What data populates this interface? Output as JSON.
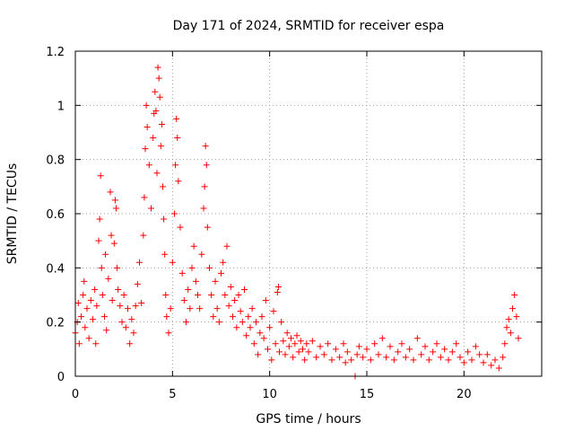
{
  "chart_data": {
    "type": "scatter",
    "title": "Day 171 of 2024, SRMTID for receiver espa",
    "xlabel": "GPS time / hours",
    "ylabel": "SRMTID / TECUs",
    "xlim": [
      0,
      24
    ],
    "ylim": [
      0,
      1.2
    ],
    "x_ticks": [
      0,
      5,
      10,
      15,
      20
    ],
    "x_tick_labels": [
      "0",
      "5",
      "10",
      "15",
      "20"
    ],
    "y_ticks": [
      0,
      0.2,
      0.4,
      0.6,
      0.8,
      1.0,
      1.2
    ],
    "y_tick_labels": [
      "0",
      "0.2",
      "0.4",
      "0.6",
      "0.8",
      "1",
      "1.2"
    ],
    "grid": true,
    "marker": "plus",
    "color": "#ff0000",
    "series": [
      {
        "name": "SRMTID",
        "points": [
          [
            0.0,
            0.16
          ],
          [
            0.1,
            0.2
          ],
          [
            0.15,
            0.27
          ],
          [
            0.2,
            0.12
          ],
          [
            0.3,
            0.22
          ],
          [
            0.4,
            0.3
          ],
          [
            0.45,
            0.35
          ],
          [
            0.5,
            0.18
          ],
          [
            0.6,
            0.25
          ],
          [
            0.7,
            0.14
          ],
          [
            0.8,
            0.28
          ],
          [
            0.9,
            0.21
          ],
          [
            1.0,
            0.32
          ],
          [
            1.05,
            0.12
          ],
          [
            1.1,
            0.26
          ],
          [
            1.2,
            0.5
          ],
          [
            1.25,
            0.58
          ],
          [
            1.3,
            0.74
          ],
          [
            1.35,
            0.4
          ],
          [
            1.4,
            0.3
          ],
          [
            1.5,
            0.22
          ],
          [
            1.55,
            0.45
          ],
          [
            1.6,
            0.17
          ],
          [
            1.7,
            0.36
          ],
          [
            1.8,
            0.68
          ],
          [
            1.85,
            0.52
          ],
          [
            1.9,
            0.28
          ],
          [
            2.0,
            0.49
          ],
          [
            2.05,
            0.65
          ],
          [
            2.1,
            0.62
          ],
          [
            2.15,
            0.4
          ],
          [
            2.2,
            0.32
          ],
          [
            2.3,
            0.26
          ],
          [
            2.4,
            0.2
          ],
          [
            2.5,
            0.3
          ],
          [
            2.6,
            0.18
          ],
          [
            2.7,
            0.25
          ],
          [
            2.8,
            0.12
          ],
          [
            2.9,
            0.21
          ],
          [
            3.0,
            0.16
          ],
          [
            3.1,
            0.26
          ],
          [
            3.2,
            0.34
          ],
          [
            3.3,
            0.42
          ],
          [
            3.4,
            0.27
          ],
          [
            3.5,
            0.52
          ],
          [
            3.55,
            0.66
          ],
          [
            3.6,
            0.84
          ],
          [
            3.65,
            1.0
          ],
          [
            3.7,
            0.92
          ],
          [
            3.8,
            0.78
          ],
          [
            3.9,
            0.62
          ],
          [
            4.0,
            0.88
          ],
          [
            4.05,
            0.97
          ],
          [
            4.1,
            1.05
          ],
          [
            4.15,
            0.98
          ],
          [
            4.2,
            0.75
          ],
          [
            4.25,
            1.14
          ],
          [
            4.3,
            1.1
          ],
          [
            4.35,
            1.03
          ],
          [
            4.4,
            0.85
          ],
          [
            4.45,
            0.93
          ],
          [
            4.5,
            0.7
          ],
          [
            4.55,
            0.58
          ],
          [
            4.6,
            0.45
          ],
          [
            4.65,
            0.3
          ],
          [
            4.7,
            0.22
          ],
          [
            4.8,
            0.16
          ],
          [
            4.9,
            0.25
          ],
          [
            5.0,
            0.42
          ],
          [
            5.1,
            0.6
          ],
          [
            5.15,
            0.78
          ],
          [
            5.2,
            0.95
          ],
          [
            5.25,
            0.88
          ],
          [
            5.3,
            0.72
          ],
          [
            5.4,
            0.55
          ],
          [
            5.5,
            0.38
          ],
          [
            5.6,
            0.28
          ],
          [
            5.7,
            0.2
          ],
          [
            5.8,
            0.32
          ],
          [
            5.9,
            0.25
          ],
          [
            6.0,
            0.4
          ],
          [
            6.1,
            0.48
          ],
          [
            6.2,
            0.35
          ],
          [
            6.3,
            0.3
          ],
          [
            6.4,
            0.25
          ],
          [
            6.5,
            0.45
          ],
          [
            6.6,
            0.62
          ],
          [
            6.65,
            0.7
          ],
          [
            6.7,
            0.85
          ],
          [
            6.75,
            0.78
          ],
          [
            6.8,
            0.55
          ],
          [
            6.9,
            0.4
          ],
          [
            7.0,
            0.3
          ],
          [
            7.1,
            0.22
          ],
          [
            7.2,
            0.35
          ],
          [
            7.3,
            0.25
          ],
          [
            7.4,
            0.2
          ],
          [
            7.5,
            0.38
          ],
          [
            7.6,
            0.42
          ],
          [
            7.7,
            0.3
          ],
          [
            7.8,
            0.48
          ],
          [
            7.9,
            0.26
          ],
          [
            8.0,
            0.33
          ],
          [
            8.1,
            0.22
          ],
          [
            8.2,
            0.28
          ],
          [
            8.3,
            0.18
          ],
          [
            8.4,
            0.3
          ],
          [
            8.5,
            0.24
          ],
          [
            8.6,
            0.2
          ],
          [
            8.7,
            0.32
          ],
          [
            8.8,
            0.15
          ],
          [
            8.9,
            0.22
          ],
          [
            9.0,
            0.18
          ],
          [
            9.1,
            0.25
          ],
          [
            9.2,
            0.12
          ],
          [
            9.3,
            0.2
          ],
          [
            9.4,
            0.08
          ],
          [
            9.5,
            0.16
          ],
          [
            9.6,
            0.22
          ],
          [
            9.7,
            0.14
          ],
          [
            9.8,
            0.28
          ],
          [
            9.9,
            0.1
          ],
          [
            10.0,
            0.18
          ],
          [
            10.1,
            0.06
          ],
          [
            10.2,
            0.24
          ],
          [
            10.3,
            0.12
          ],
          [
            10.4,
            0.31
          ],
          [
            10.45,
            0.33
          ],
          [
            10.5,
            0.09
          ],
          [
            10.6,
            0.2
          ],
          [
            10.7,
            0.13
          ],
          [
            10.8,
            0.08
          ],
          [
            10.9,
            0.16
          ],
          [
            11.0,
            0.11
          ],
          [
            11.1,
            0.14
          ],
          [
            11.2,
            0.07
          ],
          [
            11.3,
            0.12
          ],
          [
            11.4,
            0.15
          ],
          [
            11.5,
            0.09
          ],
          [
            11.6,
            0.13
          ],
          [
            11.7,
            0.1
          ],
          [
            11.8,
            0.06
          ],
          [
            11.9,
            0.12
          ],
          [
            12.0,
            0.09
          ],
          [
            12.2,
            0.13
          ],
          [
            12.4,
            0.07
          ],
          [
            12.6,
            0.11
          ],
          [
            12.8,
            0.08
          ],
          [
            13.0,
            0.12
          ],
          [
            13.2,
            0.06
          ],
          [
            13.4,
            0.1
          ],
          [
            13.6,
            0.07
          ],
          [
            13.8,
            0.12
          ],
          [
            13.9,
            0.05
          ],
          [
            14.0,
            0.09
          ],
          [
            14.2,
            0.06
          ],
          [
            14.4,
            0.0
          ],
          [
            14.5,
            0.08
          ],
          [
            14.6,
            0.11
          ],
          [
            14.8,
            0.07
          ],
          [
            15.0,
            0.1
          ],
          [
            15.2,
            0.06
          ],
          [
            15.4,
            0.12
          ],
          [
            15.6,
            0.08
          ],
          [
            15.8,
            0.14
          ],
          [
            16.0,
            0.07
          ],
          [
            16.2,
            0.11
          ],
          [
            16.4,
            0.06
          ],
          [
            16.6,
            0.09
          ],
          [
            16.8,
            0.12
          ],
          [
            17.0,
            0.07
          ],
          [
            17.2,
            0.1
          ],
          [
            17.4,
            0.06
          ],
          [
            17.6,
            0.14
          ],
          [
            17.8,
            0.08
          ],
          [
            18.0,
            0.11
          ],
          [
            18.2,
            0.06
          ],
          [
            18.4,
            0.09
          ],
          [
            18.6,
            0.12
          ],
          [
            18.8,
            0.07
          ],
          [
            19.0,
            0.1
          ],
          [
            19.2,
            0.06
          ],
          [
            19.4,
            0.09
          ],
          [
            19.6,
            0.12
          ],
          [
            19.8,
            0.07
          ],
          [
            20.0,
            0.05
          ],
          [
            20.2,
            0.09
          ],
          [
            20.4,
            0.06
          ],
          [
            20.6,
            0.11
          ],
          [
            20.8,
            0.08
          ],
          [
            21.0,
            0.05
          ],
          [
            21.2,
            0.08
          ],
          [
            21.4,
            0.04
          ],
          [
            21.6,
            0.06
          ],
          [
            21.8,
            0.03
          ],
          [
            22.0,
            0.07
          ],
          [
            22.1,
            0.12
          ],
          [
            22.2,
            0.18
          ],
          [
            22.3,
            0.21
          ],
          [
            22.4,
            0.16
          ],
          [
            22.5,
            0.25
          ],
          [
            22.6,
            0.3
          ],
          [
            22.7,
            0.22
          ],
          [
            22.8,
            0.14
          ]
        ]
      }
    ]
  }
}
